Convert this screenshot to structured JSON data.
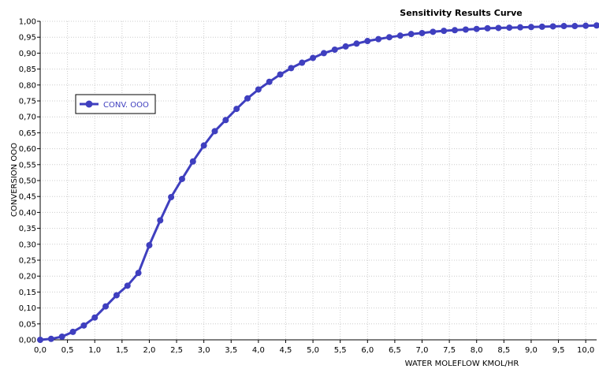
{
  "chart_data": {
    "type": "line",
    "title": "Sensitivity Results Curve",
    "xlabel": "WATER MOLEFLOW KMOL/HR",
    "ylabel": "CONVERSION OOO",
    "xlim": [
      0,
      10.2
    ],
    "ylim": [
      0,
      1.0
    ],
    "x_ticks": [
      "0,0",
      "0,5",
      "1,0",
      "1,5",
      "2,0",
      "2,5",
      "3,0",
      "3,5",
      "4,0",
      "4,5",
      "5,0",
      "5,5",
      "6,0",
      "6,5",
      "7,0",
      "7,5",
      "8,0",
      "8,5",
      "9,0",
      "9,5",
      "10,0"
    ],
    "y_ticks": [
      "0,00",
      "0,05",
      "0,10",
      "0,15",
      "0,20",
      "0,25",
      "0,30",
      "0,35",
      "0,40",
      "0,45",
      "0,50",
      "0,55",
      "0,60",
      "0,65",
      "0,70",
      "0,75",
      "0,80",
      "0,85",
      "0,90",
      "0,95",
      "1,00"
    ],
    "grid": true,
    "legend_position": "top-left",
    "series": [
      {
        "name": "CONV. OOO",
        "color": "#3f3fbf",
        "x": [
          0,
          0.2,
          0.4,
          0.6,
          0.8,
          1.0,
          1.2,
          1.4,
          1.6,
          1.8,
          2.0,
          2.2,
          2.4,
          2.6,
          2.8,
          3.0,
          3.2,
          3.4,
          3.6,
          3.8,
          4.0,
          4.2,
          4.4,
          4.6,
          4.8,
          5.0,
          5.2,
          5.4,
          5.6,
          5.8,
          6.0,
          6.2,
          6.4,
          6.6,
          6.8,
          7.0,
          7.2,
          7.4,
          7.6,
          7.8,
          8.0,
          8.2,
          8.4,
          8.6,
          8.8,
          9.0,
          9.2,
          9.4,
          9.6,
          9.8,
          10.0,
          10.2
        ],
        "values": [
          0.0,
          0.003,
          0.01,
          0.025,
          0.045,
          0.07,
          0.105,
          0.14,
          0.17,
          0.21,
          0.297,
          0.375,
          0.448,
          0.505,
          0.56,
          0.61,
          0.655,
          0.69,
          0.725,
          0.758,
          0.786,
          0.81,
          0.833,
          0.853,
          0.87,
          0.885,
          0.9,
          0.911,
          0.921,
          0.93,
          0.938,
          0.944,
          0.95,
          0.955,
          0.96,
          0.963,
          0.967,
          0.97,
          0.972,
          0.974,
          0.976,
          0.978,
          0.979,
          0.98,
          0.981,
          0.982,
          0.983,
          0.984,
          0.985,
          0.985,
          0.986,
          0.987
        ]
      }
    ]
  }
}
